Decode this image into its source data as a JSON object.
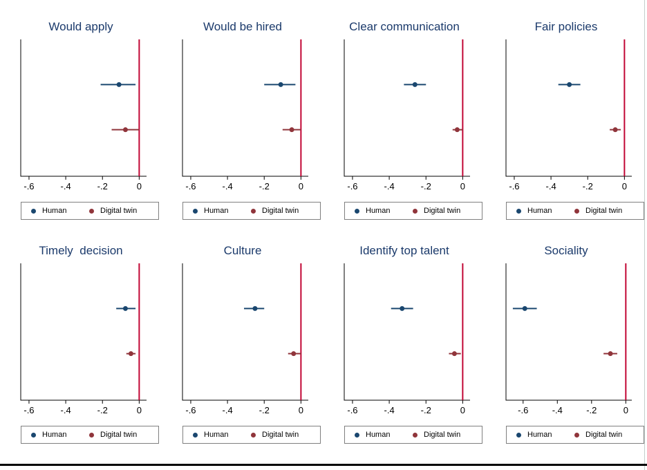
{
  "figure": {
    "background": "#ffffff",
    "bottom_rule_color": "#000000",
    "right_edge_line_color": "#c2cfcb",
    "title_color": "#1b3a6b"
  },
  "chart_data": {
    "type": "scatter",
    "subtype": "coefficient-plot-grid",
    "layout": {
      "rows": 2,
      "cols": 4,
      "grid": true
    },
    "x_axis": {
      "ticks": [
        -0.6,
        -0.4,
        -0.2,
        0
      ],
      "tick_labels": [
        "-.6",
        "-.4",
        "-.2",
        "0"
      ],
      "default_xlim": [
        -0.645,
        0.04
      ]
    },
    "zero_line": {
      "x": 0,
      "color": "#c10534"
    },
    "series_style": {
      "human": {
        "color": "#1a476f",
        "marker": "circle"
      },
      "digital_twin": {
        "color": "#90353b",
        "marker": "circle"
      }
    },
    "legend": {
      "position": "below-each-panel",
      "items": [
        {
          "key": "human",
          "label": "Human",
          "color": "#1a476f"
        },
        {
          "key": "digital_twin",
          "label": "Digital twin",
          "color": "#90353b"
        }
      ]
    },
    "panels": [
      {
        "title": "Would apply",
        "human": {
          "estimate": -0.11,
          "ci": [
            -0.21,
            -0.02
          ]
        },
        "digital_twin": {
          "estimate": -0.075,
          "ci": [
            -0.15,
            0.0
          ]
        }
      },
      {
        "title": "Would be hired",
        "human": {
          "estimate": -0.11,
          "ci": [
            -0.2,
            -0.03
          ]
        },
        "digital_twin": {
          "estimate": -0.05,
          "ci": [
            -0.1,
            0.0
          ]
        }
      },
      {
        "title": "Clear communication",
        "human": {
          "estimate": -0.26,
          "ci": [
            -0.32,
            -0.2
          ]
        },
        "digital_twin": {
          "estimate": -0.03,
          "ci": [
            -0.055,
            0.0
          ]
        }
      },
      {
        "title": "Fair policies",
        "human": {
          "estimate": -0.3,
          "ci": [
            -0.36,
            -0.24
          ]
        },
        "digital_twin": {
          "estimate": -0.05,
          "ci": [
            -0.08,
            -0.02
          ]
        }
      },
      {
        "title": "Timely  decision",
        "human": {
          "estimate": -0.075,
          "ci": [
            -0.125,
            -0.02
          ]
        },
        "digital_twin": {
          "estimate": -0.045,
          "ci": [
            -0.07,
            -0.02
          ]
        }
      },
      {
        "title": "Culture",
        "human": {
          "estimate": -0.25,
          "ci": [
            -0.31,
            -0.2
          ]
        },
        "digital_twin": {
          "estimate": -0.04,
          "ci": [
            -0.07,
            0.0
          ]
        }
      },
      {
        "title": "Identify top talent",
        "human": {
          "estimate": -0.33,
          "ci": [
            -0.39,
            -0.27
          ]
        },
        "digital_twin": {
          "estimate": -0.045,
          "ci": [
            -0.075,
            -0.01
          ]
        }
      },
      {
        "title": "Sociality",
        "xlim": [
          -0.7,
          0.035
        ],
        "human": {
          "estimate": -0.59,
          "ci": [
            -0.66,
            -0.52
          ]
        },
        "digital_twin": {
          "estimate": -0.09,
          "ci": [
            -0.13,
            -0.05
          ]
        }
      }
    ]
  }
}
